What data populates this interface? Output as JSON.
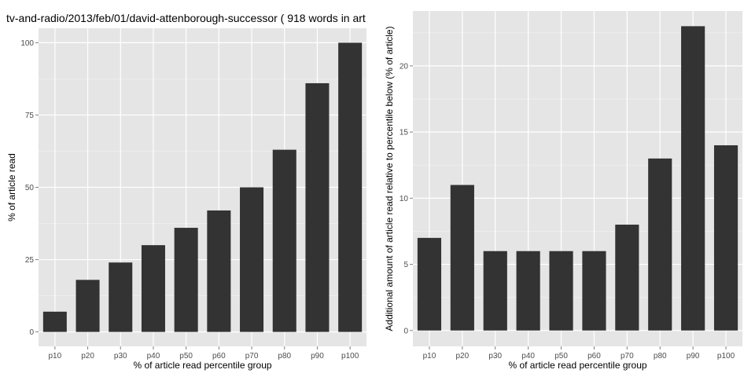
{
  "title": "tv-and-radio/2013/feb/01/david-attenborough-successor ( 918 words in art",
  "chart_data": [
    {
      "type": "bar",
      "categories": [
        "p10",
        "p20",
        "p30",
        "p40",
        "p50",
        "p60",
        "p70",
        "p80",
        "p90",
        "p100"
      ],
      "values": [
        7,
        18,
        24,
        30,
        36,
        42,
        50,
        63,
        86,
        100
      ],
      "xlabel": "% of article read percentile group",
      "ylabel": "% of article read",
      "ylim": [
        -5,
        105
      ],
      "yticks": [
        0,
        25,
        50,
        75,
        100
      ],
      "grid": true,
      "bar_color": "#333333",
      "panel_bg": "#e5e5e5"
    },
    {
      "type": "bar",
      "categories": [
        "p10",
        "p20",
        "p30",
        "p40",
        "p50",
        "p60",
        "p70",
        "p80",
        "p90",
        "p100"
      ],
      "values": [
        7,
        11,
        6,
        6,
        6,
        6,
        8,
        13,
        23,
        14
      ],
      "xlabel": "% of article read percentile group",
      "ylabel": "Additional amount of article read relative to percentile below (% of article)",
      "ylim": [
        -1.2,
        24.15
      ],
      "yticks": [
        0,
        5,
        10,
        15,
        20
      ],
      "grid": true,
      "bar_color": "#333333",
      "panel_bg": "#e5e5e5"
    }
  ]
}
